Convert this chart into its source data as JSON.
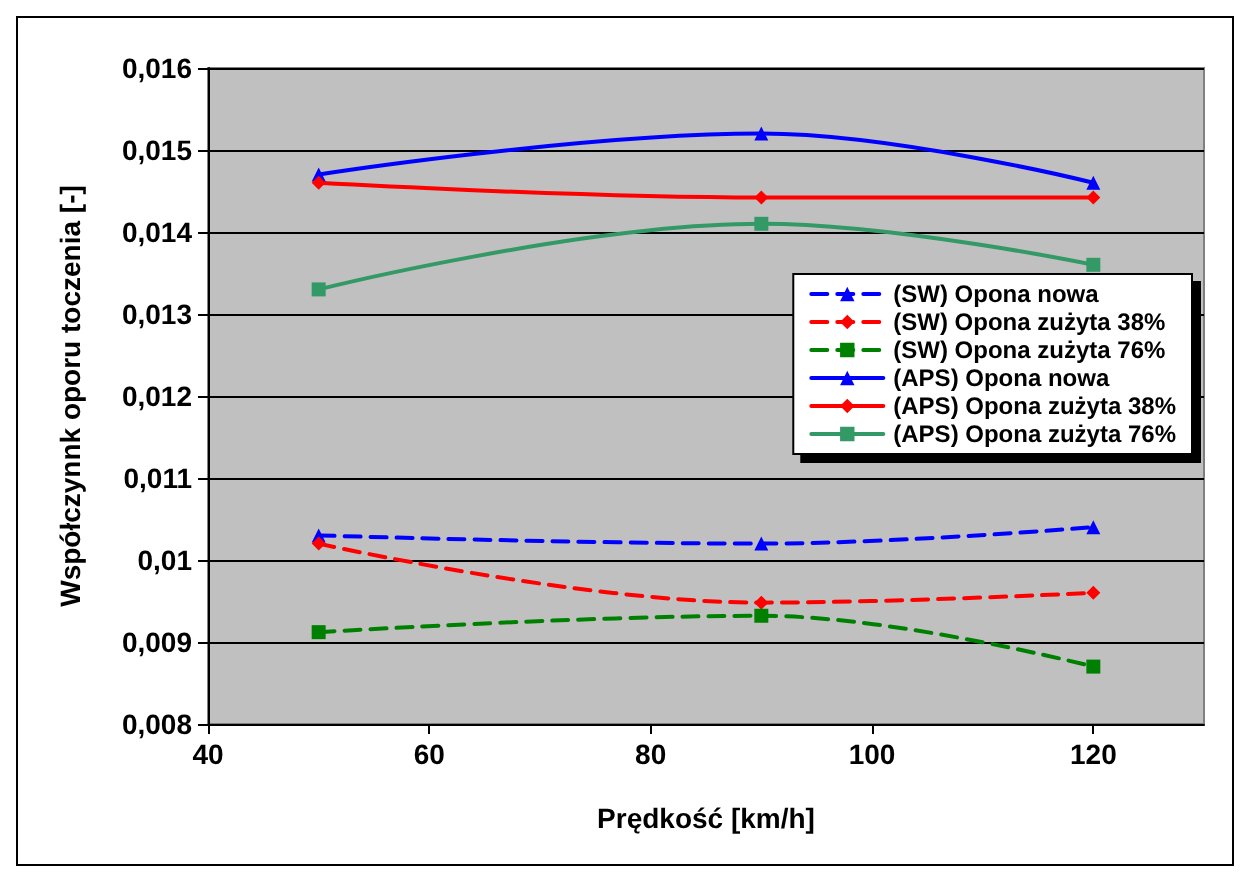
{
  "chart_data": {
    "type": "line",
    "xlabel": "Prędkość [km/h]",
    "ylabel": "Współczynnk oporu toczenia [-]",
    "x": [
      50,
      90,
      120
    ],
    "xlim": [
      40,
      130
    ],
    "xticks": [
      40,
      60,
      80,
      100,
      120
    ],
    "ylim": [
      0.008,
      0.016
    ],
    "yticks": [
      {
        "value": 0.008,
        "label": "0,008"
      },
      {
        "value": 0.009,
        "label": "0,009"
      },
      {
        "value": 0.01,
        "label": "0,01"
      },
      {
        "value": 0.011,
        "label": "0,011"
      },
      {
        "value": 0.012,
        "label": "0,012"
      },
      {
        "value": 0.013,
        "label": "0,013"
      },
      {
        "value": 0.014,
        "label": "0,014"
      },
      {
        "value": 0.015,
        "label": "0,015"
      },
      {
        "value": 0.016,
        "label": "0,016"
      }
    ],
    "grid": "y",
    "legend": "right",
    "series": [
      {
        "name": "(SW) Opona nowa",
        "color": "#0000ff",
        "values": [
          0.0103,
          0.0102,
          0.0104
        ],
        "line_style": "dashed",
        "marker": "triangle"
      },
      {
        "name": "(SW) Opona zużyta 38%",
        "color": "#ff0000",
        "values": [
          0.0102,
          0.00948,
          0.0096
        ],
        "line_style": "dashed",
        "marker": "diamond"
      },
      {
        "name": "(SW) Opona zużyta 76%",
        "color": "#008000",
        "values": [
          0.00912,
          0.00932,
          0.0087
        ],
        "line_style": "dashed",
        "marker": "square"
      },
      {
        "name": "(APS) Opona nowa",
        "color": "#0000ff",
        "values": [
          0.0147,
          0.0152,
          0.0146
        ],
        "line_style": "solid",
        "marker": "triangle"
      },
      {
        "name": "(APS) Opona zużyta 38%",
        "color": "#ff0000",
        "values": [
          0.0146,
          0.01442,
          0.01442
        ],
        "line_style": "solid",
        "marker": "diamond"
      },
      {
        "name": "(APS) Opona zużyta 76%",
        "color": "#339966",
        "values": [
          0.0133,
          0.0141,
          0.0136
        ],
        "line_style": "solid",
        "marker": "square"
      }
    ]
  }
}
